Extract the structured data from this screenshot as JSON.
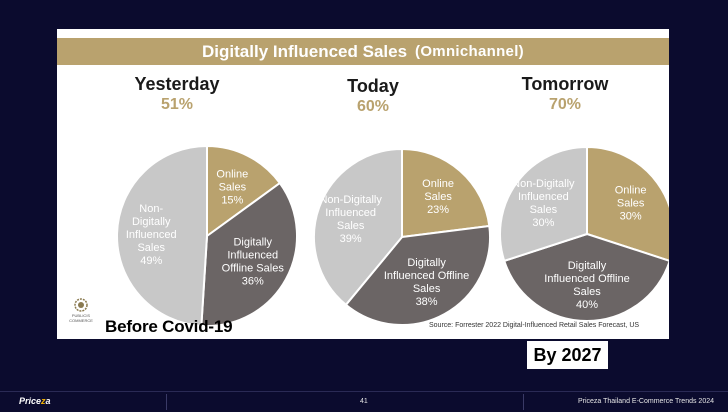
{
  "slide": {
    "title": "Digitally Influenced Sales",
    "subtitle": "(Omnichannel)",
    "before_label": "Before Covid-19",
    "source": "Source: Forrester 2022 Digital-Influenced Retail Sales Forecast, US",
    "logo_text_1": "PUBLICIS",
    "logo_text_2": "COMMERCE"
  },
  "by_label": "By 2027",
  "footer": {
    "brand_main": "Price",
    "brand_z": "z",
    "brand_end": "a",
    "page": "41",
    "publication": "Priceza Thailand E-Commerce Trends 2024"
  },
  "colors": {
    "gold": "#b9a26e",
    "dark_gray": "#6b6565",
    "light_gray": "#c8c8c8",
    "white": "#ffffff"
  },
  "chart_data": [
    {
      "type": "pie",
      "title": "Yesterday",
      "headline": "51%",
      "slices": [
        {
          "label": [
            "Online",
            "Sales"
          ],
          "value": 15,
          "text": "15%",
          "color": "#b9a26e"
        },
        {
          "label": [
            "Digitally",
            "Influenced",
            "Offline Sales"
          ],
          "value": 36,
          "text": "36%",
          "color": "#6b6565"
        },
        {
          "label": [
            "Non-",
            "Digitally",
            "Influenced",
            "Sales"
          ],
          "value": 49,
          "text": "49%",
          "color": "#c8c8c8"
        }
      ]
    },
    {
      "type": "pie",
      "title": "Today",
      "headline": "60%",
      "slices": [
        {
          "label": [
            "Online",
            "Sales"
          ],
          "value": 23,
          "text": "23%",
          "color": "#b9a26e"
        },
        {
          "label": [
            "Digitally",
            "Influenced Offline",
            "Sales"
          ],
          "value": 38,
          "text": "38%",
          "color": "#6b6565"
        },
        {
          "label": [
            "Non-Digitally",
            "Influenced",
            "Sales"
          ],
          "value": 39,
          "text": "39%",
          "color": "#c8c8c8"
        }
      ]
    },
    {
      "type": "pie",
      "title": "Tomorrow",
      "headline": "70%",
      "slices": [
        {
          "label": [
            "Online",
            "Sales"
          ],
          "value": 30,
          "text": "30%",
          "color": "#b9a26e"
        },
        {
          "label": [
            "Digitally",
            "Influenced Offline",
            "Sales"
          ],
          "value": 40,
          "text": "40%",
          "color": "#6b6565"
        },
        {
          "label": [
            "Non-Digitally",
            "Influenced",
            "Sales"
          ],
          "value": 30,
          "text": "30%",
          "color": "#c8c8c8"
        }
      ]
    }
  ]
}
